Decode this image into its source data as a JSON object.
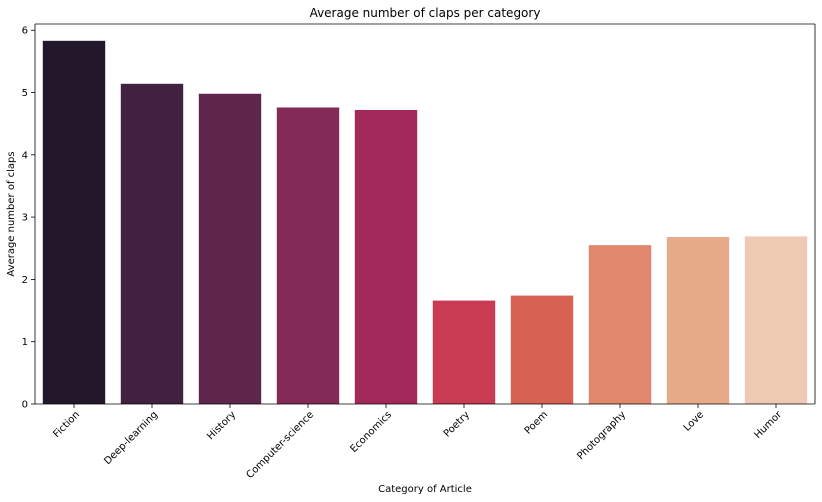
{
  "chart_data": {
    "type": "bar",
    "title": "Average number of claps per category",
    "xlabel": "Category of Article",
    "ylabel": "Average number of claps",
    "categories": [
      "Fiction",
      "Deep-learning",
      "History",
      "Computer-science",
      "Economics",
      "Poetry",
      "Poem",
      "Photography",
      "Love",
      "Humor"
    ],
    "values": [
      5.83,
      5.14,
      4.98,
      4.76,
      4.72,
      1.66,
      1.74,
      2.55,
      2.68,
      2.69
    ],
    "colors": [
      "#23172b",
      "#42203f",
      "#5e264b",
      "#832a57",
      "#a3295a",
      "#c83b52",
      "#d76152",
      "#e1876b",
      "#e8ab8a",
      "#eecab2"
    ],
    "ylim": [
      0,
      6.1
    ],
    "yticks": [
      0,
      1,
      2,
      3,
      4,
      5,
      6
    ],
    "grid": false,
    "legend": "none"
  }
}
